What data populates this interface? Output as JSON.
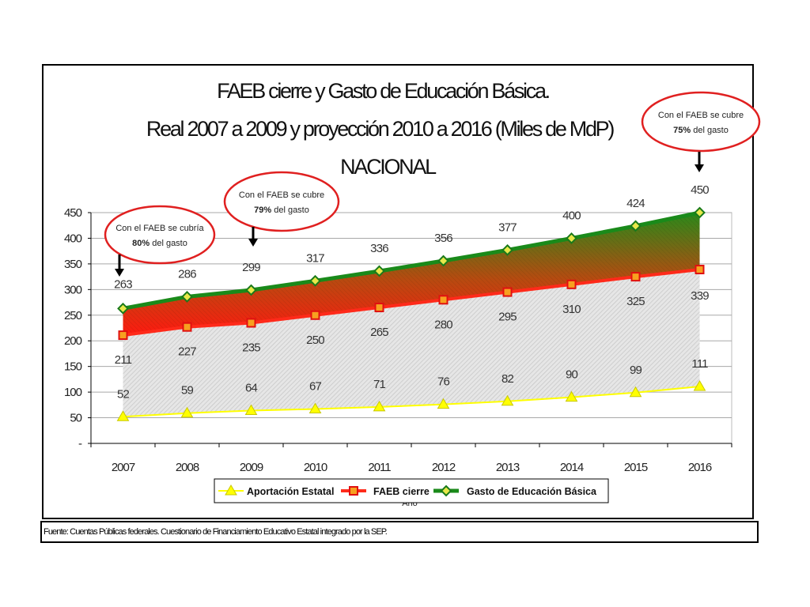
{
  "footer": "Fuente: Cuentas Públicas federales. Cuestionario de Financiamiento Educativo Estatal integrado por la SEP.",
  "notes": [
    {
      "line1": "Con el FAEB se cubría",
      "pct": "80%",
      "rest": " del gasto"
    },
    {
      "line1": "Con el FAEB se cubre",
      "pct": "79%",
      "rest": " del gasto"
    },
    {
      "line1": "Con el FAEB se cubre",
      "pct": "75%",
      "rest": " del gasto"
    }
  ],
  "colors": {
    "estatal": "#ffff00",
    "faeb": "#ff2a1a",
    "gasto": "#1a8a1a",
    "fill": "#d9d9d9",
    "note_circle": "#e02020"
  },
  "chart_data": {
    "type": "line",
    "title": "FAEB cierre y Gasto de Educación Básica.",
    "subtitle": "Real 2007 a 2009 y proyección 2010 a 2016 (Miles de MdP)",
    "subtitle2": "NACIONAL",
    "x": [
      "2007",
      "2008",
      "2009",
      "2010",
      "2011",
      "2012",
      "2013",
      "2014",
      "2015",
      "2016"
    ],
    "ylim": [
      0,
      450
    ],
    "yticks": [
      "-",
      "50",
      "100",
      "150",
      "200",
      "250",
      "300",
      "350",
      "400",
      "450"
    ],
    "xlabel": "Año",
    "grid": true,
    "legend": "bottom",
    "series": [
      {
        "name": "Aportación Estatal",
        "values": [
          52,
          59,
          64,
          67,
          71,
          76,
          82,
          90,
          99,
          111
        ],
        "labels": [
          "52",
          "59",
          "64",
          "67",
          "71",
          "76",
          "82",
          "90",
          "99",
          "111"
        ]
      },
      {
        "name": "FAEB cierre",
        "values": [
          211,
          227,
          235,
          250,
          265,
          280,
          295,
          310,
          325,
          339
        ],
        "labels": [
          "211",
          "227",
          "235",
          "250",
          "265",
          "280",
          "295",
          "310",
          "325",
          "339"
        ]
      },
      {
        "name": "Gasto de Educación Básica",
        "values": [
          263,
          286,
          299,
          317,
          336,
          356,
          377,
          400,
          424,
          450
        ],
        "labels": [
          "263",
          "286",
          "299",
          "317",
          "336",
          "356",
          "377",
          "400",
          "424",
          "450"
        ]
      }
    ]
  }
}
